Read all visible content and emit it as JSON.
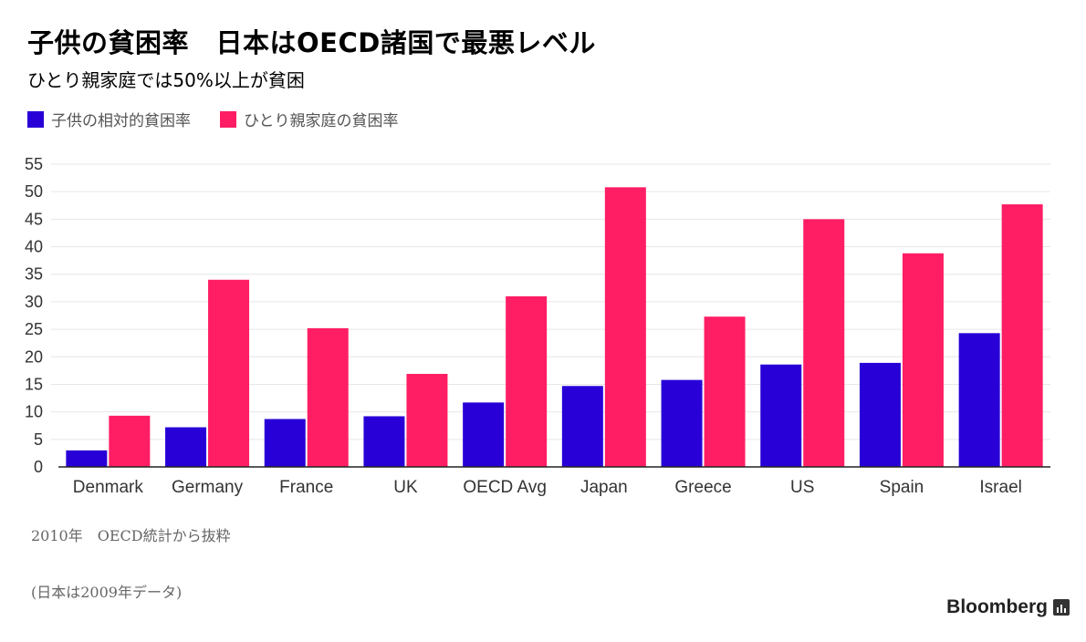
{
  "header": {
    "title": "子供の貧困率　日本はOECD諸国で最悪レベル",
    "subtitle": "ひとり親家庭では50%以上が貧困"
  },
  "legend": {
    "child": "子供の相対的貧困率",
    "single_parent": "ひとり親家庭の貧困率"
  },
  "colors": {
    "child": "#2800d7",
    "single_parent": "#ff1e64",
    "grid": "#e6e6e6",
    "axis": "#222222"
  },
  "chart_data": {
    "type": "bar",
    "title": "子供の貧困率　日本はOECD諸国で最悪レベル",
    "subtitle": "ひとり親家庭では50%以上が貧困",
    "xlabel": "",
    "ylabel": "",
    "ylim": [
      0,
      55
    ],
    "yticks": [
      0,
      5,
      10,
      15,
      20,
      25,
      30,
      35,
      40,
      45,
      50,
      55
    ],
    "grid": true,
    "legend_position": "top-left",
    "categories": [
      "Denmark",
      "Germany",
      "France",
      "UK",
      "OECD Avg",
      "Japan",
      "Greece",
      "US",
      "Spain",
      "Israel"
    ],
    "series": [
      {
        "name": "子供の相対的貧困率",
        "values": [
          3.0,
          7.2,
          8.7,
          9.2,
          11.7,
          14.7,
          15.8,
          18.6,
          18.9,
          24.3
        ]
      },
      {
        "name": "ひとり親家庭の貧困率",
        "values": [
          9.3,
          34.0,
          25.2,
          16.9,
          31.0,
          50.8,
          27.3,
          45.0,
          38.8,
          47.7
        ]
      }
    ]
  },
  "notes": {
    "source": "2010年　OECD統計から抜粋",
    "japan_note": "(日本は2009年データ)"
  },
  "brand": {
    "name": "Bloomberg",
    "icon": "bloomberg-chart-icon"
  }
}
